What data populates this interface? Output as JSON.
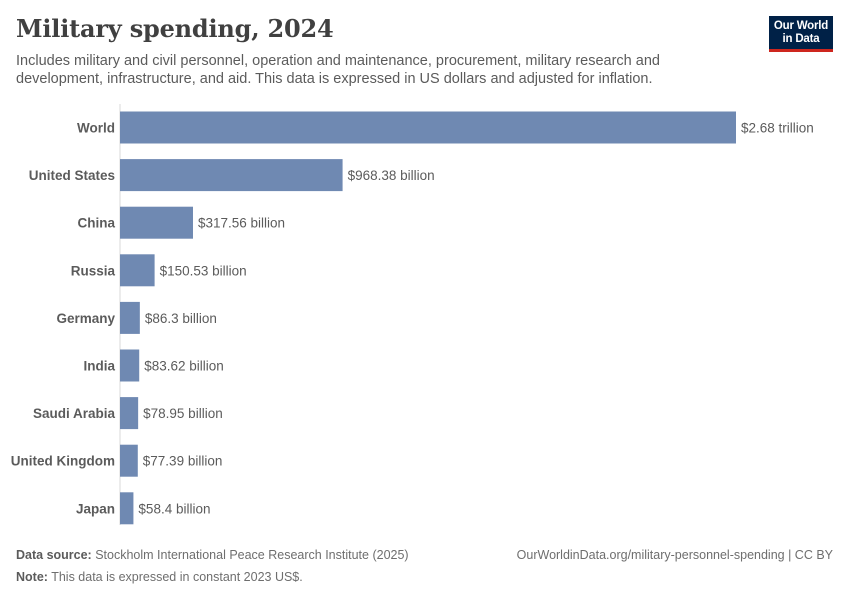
{
  "header": {
    "title": "Military spending, 2024",
    "subtitle": "Includes military and civil personnel, operation and maintenance, procurement, military research and development, infrastructure, and aid. This data is expressed in US dollars and adjusted for inflation."
  },
  "logo": {
    "line1": "Our World",
    "line2": "in Data"
  },
  "footer": {
    "source_label": "Data source:",
    "source_text": "Stockholm International Peace Research Institute (2025)",
    "note_label": "Note:",
    "note_text": "This data is expressed in constant 2023 US$.",
    "url_text": "OurWorldinData.org/military-personnel-spending | CC BY"
  },
  "colors": {
    "bar": "#6f89b2",
    "axis": "#dadada",
    "text": "#5b5b5b"
  },
  "chart_data": {
    "type": "bar",
    "orientation": "horizontal",
    "title": "Military spending, 2024",
    "unit": "US dollars (constant 2023 US$)",
    "categories": [
      "World",
      "United States",
      "China",
      "Russia",
      "Germany",
      "India",
      "Saudi Arabia",
      "United Kingdom",
      "Japan"
    ],
    "values": [
      2680000000000,
      968380000000,
      317560000000,
      150530000000,
      86300000000,
      83620000000,
      78950000000,
      77390000000,
      58400000000
    ],
    "value_labels": [
      "$2.68 trillion",
      "$968.38 billion",
      "$317.56 billion",
      "$150.53 billion",
      "$86.3 billion",
      "$83.62 billion",
      "$78.95 billion",
      "$77.39 billion",
      "$58.4 billion"
    ],
    "xlim": [
      0,
      2680000000000
    ],
    "xlabel": "",
    "ylabel": "",
    "grid": false
  }
}
